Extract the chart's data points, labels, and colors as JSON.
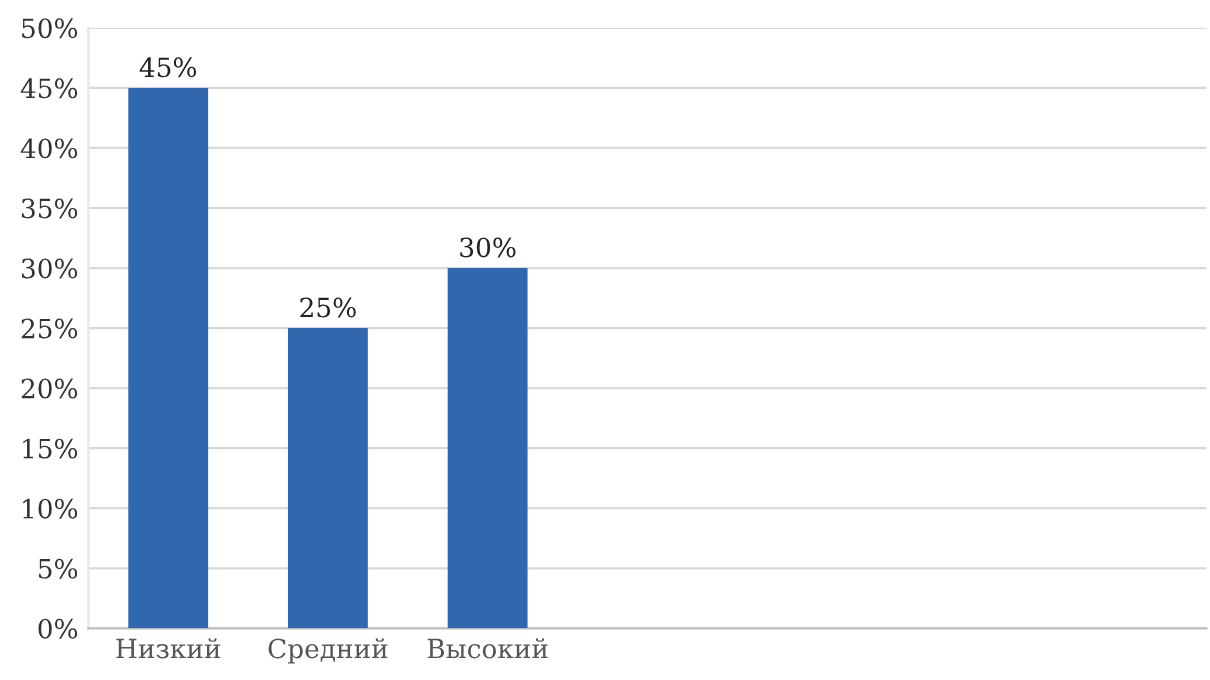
{
  "chart_data": {
    "type": "bar",
    "categories": [
      "Низкий",
      "Средний",
      "Высокий",
      null,
      null,
      null,
      null
    ],
    "values": [
      45,
      25,
      30,
      null,
      null,
      null,
      null
    ],
    "value_labels": [
      "45%",
      "25%",
      "30%",
      null,
      null,
      null,
      null
    ],
    "color": "#3068b0",
    "ylim": [
      0,
      50
    ],
    "yticks": [
      {
        "value": 0,
        "label": "0%"
      },
      {
        "value": 5,
        "label": "5%"
      },
      {
        "value": 10,
        "label": "10%"
      },
      {
        "value": 15,
        "label": "15%"
      },
      {
        "value": 20,
        "label": "20%"
      },
      {
        "value": 25,
        "label": "25%"
      },
      {
        "value": 30,
        "label": "30%"
      },
      {
        "value": 35,
        "label": "35%"
      },
      {
        "value": 40,
        "label": "40%"
      },
      {
        "value": 45,
        "label": "45%"
      },
      {
        "value": 50,
        "label": "50%"
      }
    ],
    "grid": "y",
    "legend": false
  }
}
